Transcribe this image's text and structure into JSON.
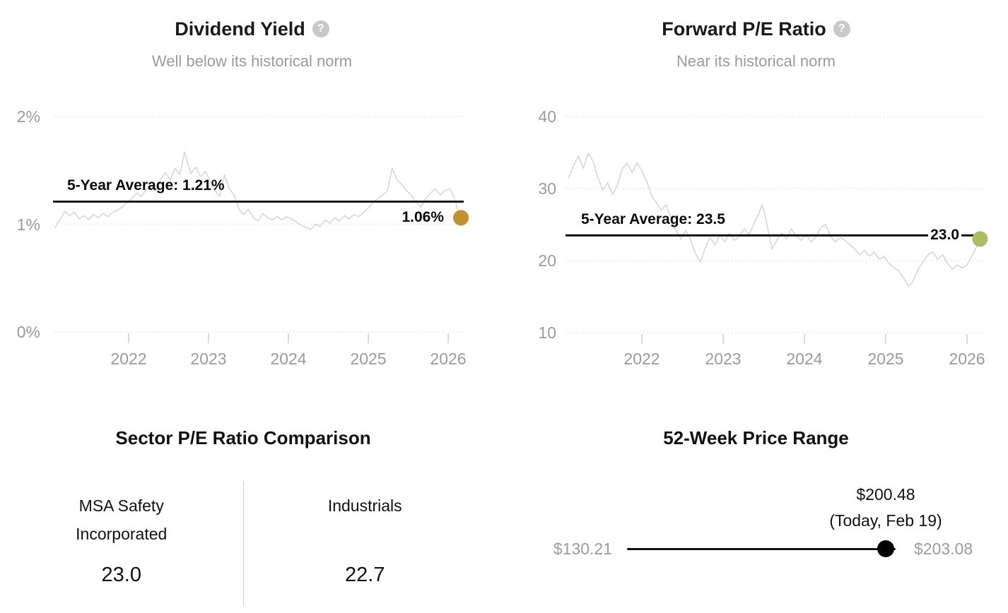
{
  "chart_data": [
    {
      "id": "dividend_yield",
      "type": "line",
      "title": "Dividend Yield",
      "subtitle": "Well below its historical norm",
      "help_glyph": "?",
      "xlim": [
        2021.08,
        2026.16
      ],
      "ylim": [
        0,
        2.05
      ],
      "grid": "dotted-horizontal",
      "legend": "none",
      "x_ticks": [
        {
          "value": 2022,
          "label": "2022"
        },
        {
          "value": 2023,
          "label": "2023"
        },
        {
          "value": 2024,
          "label": "2024"
        },
        {
          "value": 2025,
          "label": "2025"
        },
        {
          "value": 2026,
          "label": "2026"
        }
      ],
      "y_ticks": [
        {
          "value": 2,
          "label": "2%"
        },
        {
          "value": 1,
          "label": "1%"
        },
        {
          "value": 0,
          "label": "0%"
        }
      ],
      "average_line": {
        "value": 1.21,
        "label": "5-Year Average: 1.21%"
      },
      "current_point": {
        "x": 2026.16,
        "value": 1.06,
        "label": "1.06%",
        "color": "#c2912e"
      },
      "series": [
        {
          "name": "Dividend Yield",
          "color": "#d7d7d7",
          "x": [
            2021.08,
            2021.14,
            2021.2,
            2021.26,
            2021.32,
            2021.38,
            2021.44,
            2021.5,
            2021.56,
            2021.62,
            2021.68,
            2021.74,
            2021.8,
            2021.86,
            2021.92,
            2021.98,
            2022.04,
            2022.1,
            2022.16,
            2022.22,
            2022.28,
            2022.34,
            2022.4,
            2022.46,
            2022.52,
            2022.58,
            2022.64,
            2022.7,
            2022.74,
            2022.78,
            2022.84,
            2022.9,
            2022.96,
            2023.02,
            2023.08,
            2023.14,
            2023.2,
            2023.26,
            2023.32,
            2023.38,
            2023.44,
            2023.5,
            2023.56,
            2023.62,
            2023.68,
            2023.74,
            2023.8,
            2023.86,
            2023.92,
            2023.98,
            2024.04,
            2024.1,
            2024.16,
            2024.22,
            2024.28,
            2024.34,
            2024.4,
            2024.46,
            2024.52,
            2024.58,
            2024.64,
            2024.7,
            2024.76,
            2024.82,
            2024.88,
            2024.94,
            2025.0,
            2025.06,
            2025.12,
            2025.18,
            2025.24,
            2025.3,
            2025.36,
            2025.42,
            2025.48,
            2025.54,
            2025.6,
            2025.66,
            2025.72,
            2025.78,
            2025.84,
            2025.9,
            2025.96,
            2026.02,
            2026.08,
            2026.12,
            2026.16
          ],
          "y": [
            0.97,
            1.04,
            1.12,
            1.08,
            1.11,
            1.05,
            1.08,
            1.04,
            1.09,
            1.06,
            1.1,
            1.07,
            1.11,
            1.13,
            1.16,
            1.2,
            1.24,
            1.29,
            1.26,
            1.32,
            1.36,
            1.31,
            1.42,
            1.48,
            1.41,
            1.52,
            1.46,
            1.67,
            1.56,
            1.47,
            1.53,
            1.44,
            1.49,
            1.4,
            1.31,
            1.26,
            1.46,
            1.33,
            1.27,
            1.14,
            1.09,
            1.14,
            1.06,
            1.03,
            1.1,
            1.06,
            1.04,
            1.07,
            1.04,
            1.07,
            1.05,
            1.02,
            0.99,
            0.97,
            0.95,
            1.0,
            0.98,
            1.04,
            1.01,
            1.06,
            1.03,
            1.08,
            1.05,
            1.09,
            1.07,
            1.11,
            1.15,
            1.2,
            1.24,
            1.27,
            1.31,
            1.52,
            1.41,
            1.37,
            1.31,
            1.27,
            1.2,
            1.16,
            1.24,
            1.29,
            1.33,
            1.27,
            1.31,
            1.33,
            1.24,
            1.13,
            1.06
          ]
        }
      ]
    },
    {
      "id": "forward_pe_ratio",
      "type": "line",
      "title": "Forward P/E Ratio",
      "subtitle": "Near its historical norm",
      "help_glyph": "?",
      "xlim": [
        2021.1,
        2026.16
      ],
      "ylim": [
        10,
        40
      ],
      "grid": "dotted-horizontal",
      "legend": "none",
      "x_ticks": [
        {
          "value": 2022,
          "label": "2022"
        },
        {
          "value": 2023,
          "label": "2023"
        },
        {
          "value": 2024,
          "label": "2024"
        },
        {
          "value": 2025,
          "label": "2025"
        },
        {
          "value": 2026,
          "label": "2026"
        }
      ],
      "y_ticks": [
        {
          "value": 40,
          "label": "40"
        },
        {
          "value": 30,
          "label": "30"
        },
        {
          "value": 20,
          "label": "20"
        },
        {
          "value": 10,
          "label": "10"
        }
      ],
      "average_line": {
        "value": 23.5,
        "label": "5-Year Average: 23.5"
      },
      "current_point": {
        "x": 2026.16,
        "value": 23.0,
        "label": "23.0",
        "color": "#a9bf62"
      },
      "series": [
        {
          "name": "Forward P/E Ratio",
          "color": "#d7d7d7",
          "x": [
            2021.1,
            2021.16,
            2021.22,
            2021.28,
            2021.34,
            2021.4,
            2021.46,
            2021.52,
            2021.58,
            2021.64,
            2021.7,
            2021.76,
            2021.82,
            2021.88,
            2021.94,
            2022.0,
            2022.06,
            2022.12,
            2022.18,
            2022.24,
            2022.3,
            2022.36,
            2022.42,
            2022.48,
            2022.54,
            2022.6,
            2022.66,
            2022.72,
            2022.78,
            2022.84,
            2022.9,
            2022.96,
            2023.02,
            2023.08,
            2023.14,
            2023.2,
            2023.26,
            2023.32,
            2023.38,
            2023.44,
            2023.48,
            2023.54,
            2023.6,
            2023.66,
            2023.72,
            2023.78,
            2023.84,
            2023.9,
            2023.96,
            2024.02,
            2024.08,
            2024.14,
            2024.2,
            2024.26,
            2024.32,
            2024.38,
            2024.44,
            2024.5,
            2024.56,
            2024.62,
            2024.68,
            2024.74,
            2024.8,
            2024.86,
            2024.92,
            2024.98,
            2025.04,
            2025.1,
            2025.16,
            2025.22,
            2025.28,
            2025.34,
            2025.4,
            2025.46,
            2025.52,
            2025.58,
            2025.64,
            2025.7,
            2025.76,
            2025.82,
            2025.88,
            2025.94,
            2026.0,
            2026.06,
            2026.12,
            2026.16
          ],
          "y": [
            31.5,
            33.2,
            34.5,
            32.8,
            34.9,
            33.8,
            31.5,
            29.8,
            30.8,
            29.2,
            30.5,
            32.8,
            33.5,
            32.2,
            33.6,
            32.5,
            31.0,
            29.0,
            28.0,
            27.0,
            27.8,
            25.8,
            24.2,
            23.0,
            24.2,
            22.8,
            21.0,
            19.8,
            21.8,
            23.2,
            22.2,
            23.6,
            22.6,
            23.8,
            22.8,
            23.4,
            24.4,
            23.6,
            25.2,
            26.5,
            27.8,
            25.0,
            21.6,
            22.8,
            23.8,
            23.0,
            24.4,
            23.4,
            22.8,
            23.6,
            22.6,
            23.2,
            24.6,
            25.0,
            23.4,
            22.6,
            23.2,
            22.8,
            22.2,
            21.6,
            20.8,
            21.4,
            20.6,
            21.2,
            20.2,
            20.6,
            19.6,
            19.0,
            18.6,
            17.6,
            16.4,
            17.2,
            18.8,
            19.8,
            20.8,
            21.2,
            20.2,
            20.8,
            19.6,
            18.8,
            19.4,
            19.0,
            19.4,
            20.6,
            22.0,
            23.0
          ]
        }
      ]
    },
    {
      "id": "sector_pe_comparison",
      "type": "table",
      "title": "Sector P/E Ratio Comparison",
      "columns": [
        {
          "name": "MSA Safety Incorporated",
          "value": "23.0"
        },
        {
          "name": "Industrials",
          "value": "22.7"
        }
      ]
    },
    {
      "id": "price_range_52_week",
      "type": "range",
      "title": "52-Week Price Range",
      "low": 130.21,
      "high": 203.08,
      "current": 200.48,
      "low_label": "$130.21",
      "high_label": "$203.08",
      "current_label": "$200.48",
      "current_sublabel": "(Today, Feb 19)"
    }
  ]
}
